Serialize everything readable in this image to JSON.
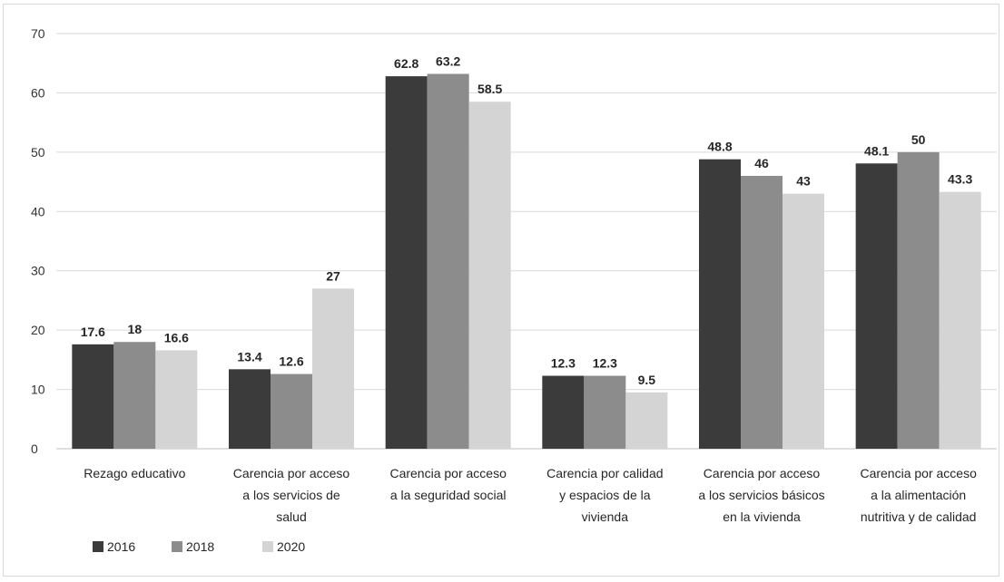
{
  "chart_data": {
    "type": "bar",
    "title": "",
    "xlabel": "",
    "ylabel": "",
    "ylim": [
      0,
      70
    ],
    "yticks": [
      0,
      10,
      20,
      30,
      40,
      50,
      60,
      70
    ],
    "grid": true,
    "legend_position": "bottom-left",
    "categories": [
      [
        "Rezago educativo"
      ],
      [
        "Carencia por acceso",
        "a los servicios de",
        "salud"
      ],
      [
        "Carencia por acceso",
        "a la seguridad social"
      ],
      [
        "Carencia por calidad",
        "y espacios de la",
        "vivienda"
      ],
      [
        "Carencia por acceso",
        "a los servicios básicos",
        "en la vivienda"
      ],
      [
        "Carencia por acceso",
        "a la alimentación",
        "nutritiva y de calidad"
      ]
    ],
    "series": [
      {
        "name": "2016",
        "color": "#3b3b3b",
        "values": [
          17.6,
          13.4,
          62.8,
          12.3,
          48.8,
          48.1
        ],
        "labels": [
          "17.6",
          "13.4",
          "62.8",
          "12.3",
          "48.8",
          "48.1"
        ]
      },
      {
        "name": "2018",
        "color": "#8c8c8c",
        "values": [
          18,
          12.6,
          63.2,
          12.3,
          46,
          50
        ],
        "labels": [
          "18",
          "12.6",
          "63.2",
          "12.3",
          "46",
          "50"
        ]
      },
      {
        "name": "2020",
        "color": "#d4d4d4",
        "values": [
          16.6,
          27,
          58.5,
          9.5,
          43,
          43.3
        ],
        "labels": [
          "16.6",
          "27",
          "58.5",
          "9.5",
          "43",
          "43.3"
        ]
      }
    ]
  }
}
